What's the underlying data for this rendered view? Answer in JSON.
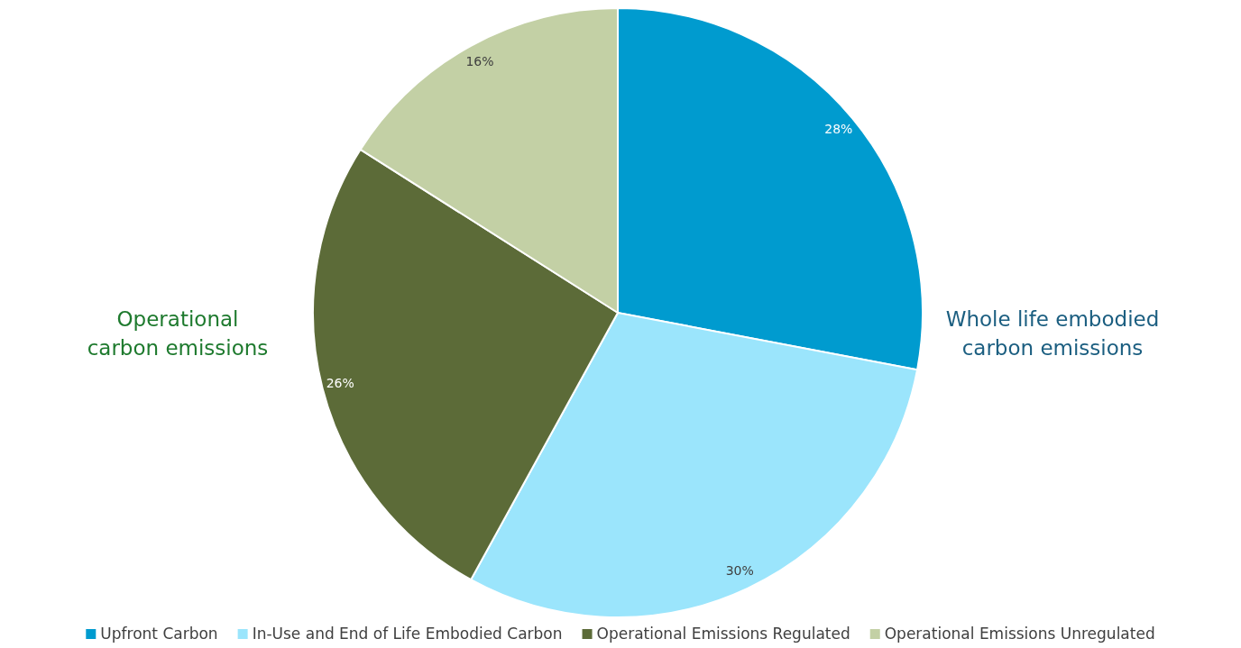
{
  "chart_data": {
    "type": "pie",
    "categories": [
      "Upfront Carbon",
      "In-Use and End of Life Embodied Carbon",
      "Operational Emissions Regulated",
      "Operational Emissions Unregulated"
    ],
    "values": [
      28,
      30,
      26,
      16
    ],
    "colors": [
      "#009bcf",
      "#9be5fc",
      "#5c6b38",
      "#c3d0a5"
    ],
    "value_labels": [
      "28%",
      "30%",
      "26%",
      "16%"
    ],
    "legend": "bottom",
    "annotations": [
      "Operational\ncarbon emissions",
      "Whole life embodied\ncarbon emissions"
    ]
  }
}
